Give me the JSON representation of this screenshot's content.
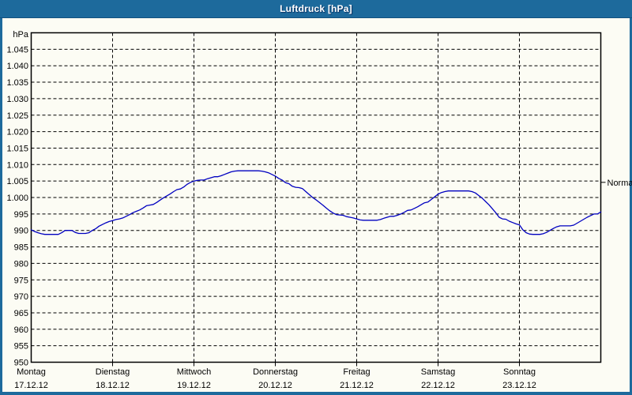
{
  "window": {
    "title": "Luftdruck [hPa]"
  },
  "colors": {
    "titlebar": "#1d6a9c",
    "frame": "#1d6a9c",
    "content_bg": "#fcfcf4",
    "line": "#0000c0",
    "grid": "#000000",
    "axis": "#000000",
    "text": "#000000",
    "title_text": "#ffffff"
  },
  "normal_marker": {
    "label": "Normal",
    "value": 1004.6
  },
  "chart_data": {
    "type": "line",
    "title": "Luftdruck [hPa]",
    "ylabel": "hPa",
    "ylim": [
      950,
      1050
    ],
    "ytick_step": 5,
    "ytick_min": 950,
    "ytick_max": 1045,
    "grid": true,
    "x_unit": "hours",
    "x_range": [
      0,
      168
    ],
    "days": [
      {
        "name": "Montag",
        "date": "17.12.12"
      },
      {
        "name": "Dienstag",
        "date": "18.12.12"
      },
      {
        "name": "Mittwoch",
        "date": "19.12.12"
      },
      {
        "name": "Donnerstag",
        "date": "20.12.12"
      },
      {
        "name": "Freitag",
        "date": "21.12.12"
      },
      {
        "name": "Samstag",
        "date": "22.12.12"
      },
      {
        "name": "Sonntag",
        "date": "23.12.12"
      }
    ],
    "series": [
      {
        "name": "Luftdruck",
        "values": [
          990.2,
          989.7,
          989.3,
          989.0,
          988.8,
          988.8,
          988.8,
          988.8,
          988.8,
          989.3,
          990.0,
          990.0,
          990.0,
          989.4,
          989.1,
          989.1,
          989.1,
          989.3,
          990.0,
          990.5,
          991.3,
          991.8,
          992.3,
          992.7,
          993.0,
          993.3,
          993.5,
          993.8,
          994.3,
          994.8,
          995.4,
          995.8,
          996.2,
          996.8,
          997.5,
          997.7,
          997.9,
          998.5,
          999.2,
          999.9,
          1000.5,
          1001.1,
          1001.8,
          1002.4,
          1002.6,
          1003.2,
          1004.0,
          1004.6,
          1005.0,
          1005.2,
          1005.3,
          1005.3,
          1005.7,
          1006.0,
          1006.3,
          1006.3,
          1006.6,
          1007.0,
          1007.4,
          1007.8,
          1008.0,
          1008.1,
          1008.1,
          1008.1,
          1008.1,
          1008.1,
          1008.1,
          1008.1,
          1008.0,
          1007.8,
          1007.5,
          1007.0,
          1006.5,
          1005.8,
          1005.3,
          1004.5,
          1004.2,
          1003.4,
          1003.1,
          1003.0,
          1002.7,
          1001.8,
          1000.9,
          1000.0,
          999.3,
          998.5,
          997.7,
          996.8,
          996.0,
          995.3,
          994.8,
          994.7,
          994.6,
          994.2,
          994.0,
          993.8,
          993.5,
          993.2,
          993.1,
          993.1,
          993.1,
          993.1,
          993.1,
          993.3,
          993.7,
          994.0,
          994.3,
          994.3,
          994.6,
          995.0,
          995.5,
          996.1,
          996.2,
          996.7,
          997.2,
          997.8,
          998.4,
          998.6,
          999.4,
          1000.2,
          1001.0,
          1001.5,
          1001.8,
          1002.0,
          1002.0,
          1002.0,
          1002.0,
          1002.0,
          1002.0,
          1002.0,
          1001.8,
          1001.4,
          1000.6,
          999.8,
          998.8,
          997.8,
          996.6,
          995.4,
          994.0,
          993.5,
          993.4,
          992.8,
          992.4,
          992.0,
          991.7,
          990.2,
          989.3,
          988.9,
          988.8,
          988.8,
          988.8,
          989.0,
          989.4,
          990.0,
          990.6,
          991.1,
          991.4,
          991.4,
          991.4,
          991.4,
          991.6,
          992.2,
          992.8,
          993.4,
          994.0,
          994.5,
          995.0,
          995.0,
          995.6
        ]
      }
    ]
  }
}
